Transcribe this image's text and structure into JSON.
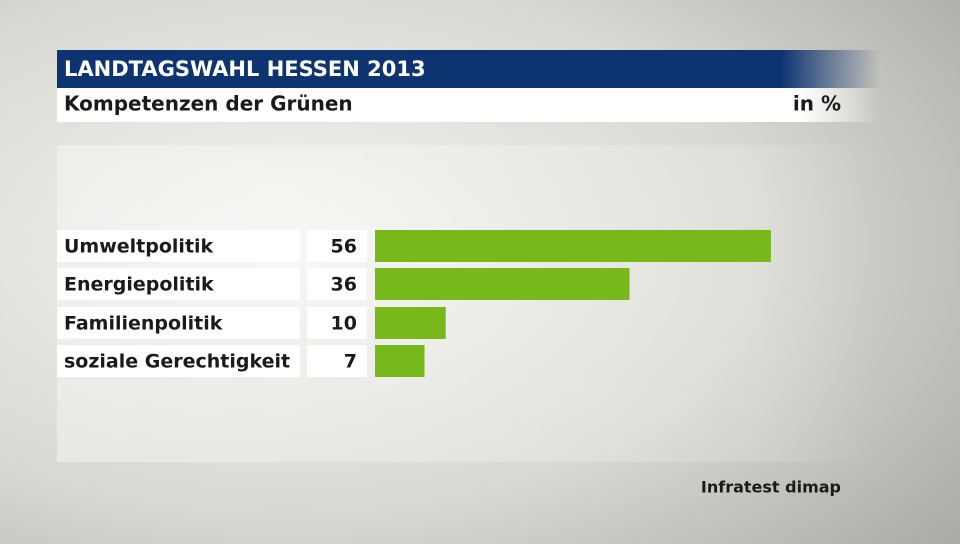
{
  "chart_data": {
    "type": "bar",
    "orientation": "horizontal",
    "title": "LANDTAGSWAHL HESSEN 2013",
    "subtitle": "Kompetenzen der Grünen",
    "unit": "in %",
    "categories": [
      "Umweltpolitik",
      "Energiepolitik",
      "Familienpolitik",
      "soziale Gerechtigkeit"
    ],
    "values": [
      56,
      36,
      10,
      7
    ],
    "color": "#77b81b",
    "source": "Infratest dimap"
  }
}
